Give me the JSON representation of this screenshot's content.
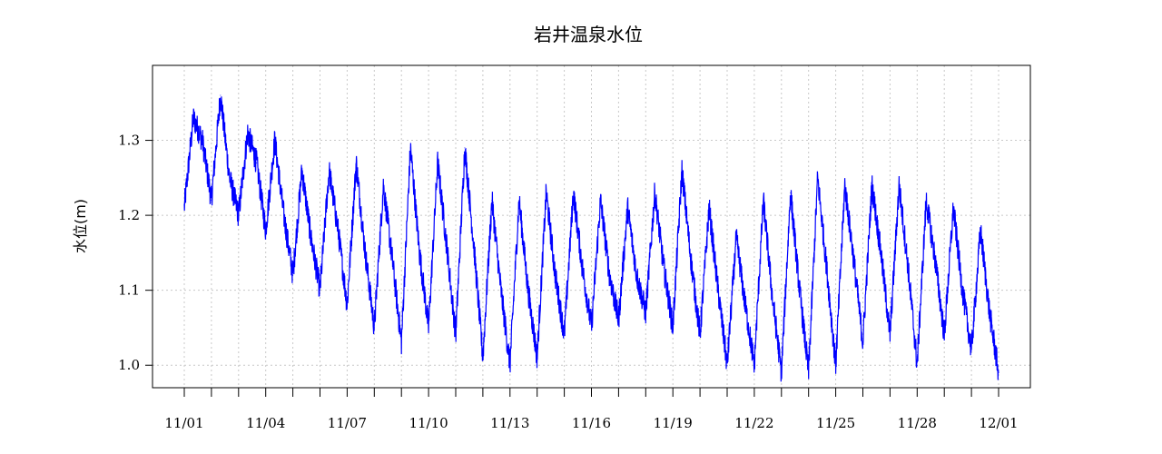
{
  "chart_data": {
    "type": "line",
    "title": "岩井温泉水位",
    "xlabel": "",
    "ylabel": "水位(m)",
    "xlim": [
      "11/01",
      "12/01"
    ],
    "ylim": [
      0.97,
      1.4
    ],
    "y_ticks": [
      1.0,
      1.1,
      1.2,
      1.3
    ],
    "y_tick_labels": [
      "1.0",
      "1.1",
      "1.2",
      "1.3"
    ],
    "x_tick_labels": [
      "11/01",
      "11/04",
      "11/07",
      "11/10",
      "11/13",
      "11/16",
      "11/19",
      "11/22",
      "11/25",
      "11/28",
      "12/01"
    ],
    "grid": true,
    "line_color": "#0000ff",
    "grid_color": "#c8c8c8",
    "series": [
      {
        "x": [
          "11/01 00:00",
          "11/01 08:00",
          "11/01 16:00",
          "11/02 00:00",
          "11/02 08:00",
          "11/02 16:00",
          "11/03 00:00",
          "11/03 08:00",
          "11/03 16:00",
          "11/04 00:00",
          "11/04 08:00",
          "11/04 16:00",
          "11/05 00:00",
          "11/05 08:00",
          "11/05 16:00",
          "11/06 00:00",
          "11/06 08:00",
          "11/06 16:00",
          "11/07 00:00",
          "11/07 08:00",
          "11/07 16:00",
          "11/08 00:00",
          "11/08 08:00",
          "11/08 16:00",
          "11/09 00:00",
          "11/09 08:00",
          "11/09 16:00",
          "11/10 00:00",
          "11/10 08:00",
          "11/10 16:00",
          "11/11 00:00",
          "11/11 08:00",
          "11/11 16:00",
          "11/12 00:00",
          "11/12 08:00",
          "11/12 16:00",
          "11/13 00:00",
          "11/13 08:00",
          "11/13 16:00",
          "11/14 00:00",
          "11/14 08:00",
          "11/14 16:00",
          "11/15 00:00",
          "11/15 08:00",
          "11/15 16:00",
          "11/16 00:00",
          "11/16 08:00",
          "11/16 16:00",
          "11/17 00:00",
          "11/17 08:00",
          "11/17 16:00",
          "11/18 00:00",
          "11/18 08:00",
          "11/18 16:00",
          "11/19 00:00",
          "11/19 08:00",
          "11/19 16:00",
          "11/20 00:00",
          "11/20 08:00",
          "11/20 16:00",
          "11/21 00:00",
          "11/21 08:00",
          "11/21 16:00",
          "11/22 00:00",
          "11/22 08:00",
          "11/22 16:00",
          "11/23 00:00",
          "11/23 08:00",
          "11/23 16:00",
          "11/24 00:00",
          "11/24 08:00",
          "11/24 16:00",
          "11/25 00:00",
          "11/25 08:00",
          "11/25 16:00",
          "11/26 00:00",
          "11/26 08:00",
          "11/26 16:00",
          "11/27 00:00",
          "11/27 08:00",
          "11/27 16:00",
          "11/28 00:00",
          "11/28 08:00",
          "11/28 16:00",
          "11/29 00:00",
          "11/29 08:00",
          "11/29 16:00",
          "11/30 00:00",
          "11/30 08:00",
          "11/30 16:00",
          "12/01 00:00"
        ],
        "values": [
          1.21,
          1.33,
          1.3,
          1.22,
          1.36,
          1.25,
          1.2,
          1.31,
          1.27,
          1.18,
          1.3,
          1.2,
          1.12,
          1.26,
          1.17,
          1.1,
          1.26,
          1.18,
          1.08,
          1.27,
          1.15,
          1.05,
          1.24,
          1.14,
          1.03,
          1.29,
          1.15,
          1.05,
          1.27,
          1.16,
          1.04,
          1.29,
          1.16,
          1.01,
          1.22,
          1.1,
          1.0,
          1.22,
          1.1,
          1.01,
          1.23,
          1.12,
          1.04,
          1.23,
          1.13,
          1.05,
          1.22,
          1.12,
          1.06,
          1.21,
          1.12,
          1.07,
          1.23,
          1.13,
          1.05,
          1.26,
          1.14,
          1.04,
          1.21,
          1.1,
          1.0,
          1.17,
          1.08,
          1.0,
          1.22,
          1.09,
          0.99,
          1.23,
          1.1,
          0.99,
          1.25,
          1.13,
          1.0,
          1.24,
          1.14,
          1.03,
          1.24,
          1.15,
          1.04,
          1.24,
          1.13,
          1.0,
          1.22,
          1.14,
          1.04,
          1.21,
          1.1,
          1.02,
          1.18,
          1.07,
          0.99
        ]
      }
    ]
  }
}
